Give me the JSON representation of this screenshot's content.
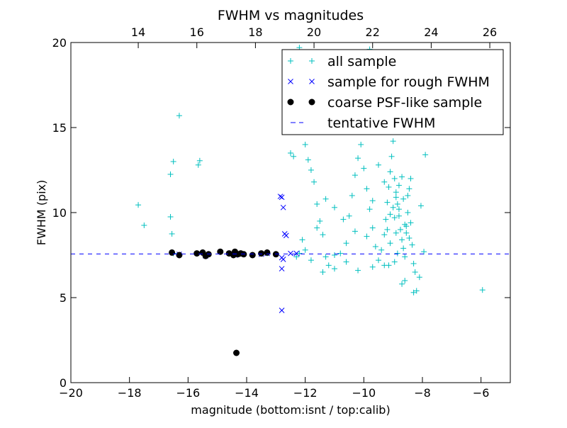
{
  "chart_data": {
    "type": "scatter",
    "title": "FWHM vs magnitudes",
    "xlabel": "magnitude (bottom:isnt / top:calib)",
    "ylabel": "FWHM (pix)",
    "xlim": [
      -20,
      -5
    ],
    "ylim": [
      0,
      20
    ],
    "x_ticks": [
      -20,
      -18,
      -16,
      -14,
      -12,
      -10,
      -8,
      -6
    ],
    "x_tick_labels": [
      "−20",
      "−18",
      "−16",
      "−14",
      "−12",
      "−10",
      "−8",
      "−6"
    ],
    "y_ticks": [
      0,
      5,
      10,
      15,
      20
    ],
    "y_tick_labels": [
      "0",
      "5",
      "10",
      "15",
      "20"
    ],
    "top_axis": {
      "offset": 31.7,
      "ticks": [
        14,
        16,
        18,
        20,
        22,
        24,
        26
      ],
      "tick_labels": [
        "14",
        "16",
        "18",
        "20",
        "22",
        "24",
        "26"
      ]
    },
    "grid": false,
    "legend_position": "top-right",
    "series": [
      {
        "name": "all sample",
        "marker": "plus",
        "color": "#00bfbf",
        "points": [
          [
            -17.7,
            10.45
          ],
          [
            -17.5,
            9.25
          ],
          [
            -16.6,
            12.25
          ],
          [
            -16.5,
            13.0
          ],
          [
            -16.6,
            9.75
          ],
          [
            -16.55,
            8.75
          ],
          [
            -16.5,
            7.6
          ],
          [
            -16.3,
            15.7
          ],
          [
            -15.6,
            13.05
          ],
          [
            -15.65,
            12.8
          ],
          [
            -13.5,
            7.6
          ],
          [
            -13.3,
            7.6
          ],
          [
            -12.2,
            7.6
          ],
          [
            -12.5,
            13.5
          ],
          [
            -12.0,
            14.0
          ],
          [
            -11.9,
            13.1
          ],
          [
            -11.8,
            12.5
          ],
          [
            -11.7,
            11.8
          ],
          [
            -11.6,
            10.5
          ],
          [
            -11.5,
            9.5
          ],
          [
            -11.4,
            8.7
          ],
          [
            -11.3,
            7.4
          ],
          [
            -11.2,
            6.9
          ],
          [
            -11.0,
            7.5
          ],
          [
            -10.8,
            7.6
          ],
          [
            -10.6,
            8.2
          ],
          [
            -10.5,
            9.8
          ],
          [
            -10.4,
            11.0
          ],
          [
            -10.3,
            12.2
          ],
          [
            -10.2,
            13.2
          ],
          [
            -10.1,
            14.0
          ],
          [
            -10.0,
            12.6
          ],
          [
            -9.9,
            11.4
          ],
          [
            -9.8,
            10.2
          ],
          [
            -9.7,
            9.1
          ],
          [
            -9.6,
            8.0
          ],
          [
            -9.5,
            7.2
          ],
          [
            -9.4,
            7.8
          ],
          [
            -9.3,
            8.7
          ],
          [
            -9.25,
            9.6
          ],
          [
            -9.2,
            10.6
          ],
          [
            -9.15,
            11.5
          ],
          [
            -9.1,
            12.4
          ],
          [
            -9.05,
            13.3
          ],
          [
            -9.0,
            14.2
          ],
          [
            -8.95,
            12.0
          ],
          [
            -8.9,
            11.2
          ],
          [
            -8.85,
            10.5
          ],
          [
            -8.8,
            9.8
          ],
          [
            -8.75,
            9.0
          ],
          [
            -8.7,
            8.4
          ],
          [
            -8.65,
            7.9
          ],
          [
            -8.6,
            7.4
          ],
          [
            -8.55,
            8.8
          ],
          [
            -8.5,
            10.0
          ],
          [
            -8.45,
            11.4
          ],
          [
            -8.4,
            9.4
          ],
          [
            -8.35,
            8.1
          ],
          [
            -8.3,
            7.0
          ],
          [
            -8.25,
            6.5
          ],
          [
            -8.2,
            5.4
          ],
          [
            -8.1,
            6.2
          ],
          [
            -7.95,
            7.7
          ],
          [
            -8.05,
            10.4
          ],
          [
            -7.9,
            13.4
          ],
          [
            -8.6,
            6.0
          ],
          [
            -8.7,
            5.8
          ],
          [
            -9.3,
            6.9
          ],
          [
            -9.7,
            6.8
          ],
          [
            -10.2,
            6.6
          ],
          [
            -10.6,
            7.1
          ],
          [
            -11.0,
            6.7
          ],
          [
            -11.4,
            6.5
          ],
          [
            -11.8,
            7.2
          ],
          [
            -12.1,
            8.4
          ],
          [
            -9.0,
            15.0
          ],
          [
            -9.2,
            16.5
          ],
          [
            -9.4,
            17.8
          ],
          [
            -9.6,
            19.0
          ],
          [
            -9.8,
            19.6
          ],
          [
            -10.1,
            17.3
          ],
          [
            -10.4,
            16.0
          ],
          [
            -10.7,
            15.0
          ],
          [
            -10.0,
            18.5
          ],
          [
            -9.5,
            12.8
          ],
          [
            -9.3,
            11.8
          ],
          [
            -8.9,
            10.9
          ],
          [
            -8.8,
            10.2
          ],
          [
            -8.95,
            9.7
          ],
          [
            -9.1,
            9.9
          ],
          [
            -8.65,
            10.8
          ],
          [
            -8.55,
            9.2
          ],
          [
            -8.45,
            8.5
          ],
          [
            -8.4,
            12.0
          ],
          [
            -9.7,
            10.7
          ],
          [
            -9.9,
            8.6
          ],
          [
            -10.3,
            8.9
          ],
          [
            -10.7,
            9.6
          ],
          [
            -11.0,
            10.3
          ],
          [
            -11.3,
            10.8
          ],
          [
            -11.6,
            9.1
          ],
          [
            -12.0,
            7.8
          ],
          [
            -12.3,
            7.4
          ],
          [
            -12.4,
            13.3
          ],
          [
            -12.7,
            16.4
          ],
          [
            -12.2,
            19.7
          ],
          [
            -5.95,
            5.45
          ],
          [
            -8.3,
            5.3
          ],
          [
            -8.95,
            7.1
          ],
          [
            -9.15,
            6.9
          ],
          [
            -8.85,
            7.6
          ],
          [
            -8.6,
            9.3
          ],
          [
            -8.5,
            11.0
          ],
          [
            -8.7,
            12.1
          ],
          [
            -8.8,
            11.6
          ],
          [
            -9.0,
            10.3
          ],
          [
            -9.2,
            9.0
          ],
          [
            -9.1,
            8.2
          ],
          [
            -8.9,
            8.8
          ]
        ]
      },
      {
        "name": "sample for rough FWHM",
        "marker": "x",
        "color": "#0000ff",
        "points": [
          [
            -12.85,
            10.95
          ],
          [
            -12.8,
            10.9
          ],
          [
            -12.75,
            10.3
          ],
          [
            -12.7,
            8.75
          ],
          [
            -12.65,
            8.65
          ],
          [
            -12.8,
            7.35
          ],
          [
            -12.75,
            7.25
          ],
          [
            -12.8,
            6.7
          ],
          [
            -12.8,
            4.25
          ],
          [
            -12.5,
            7.6
          ],
          [
            -12.3,
            7.6
          ],
          [
            -13.5,
            7.55
          ],
          [
            -13.3,
            7.6
          ],
          [
            -14.4,
            7.5
          ],
          [
            -15.4,
            7.45
          ],
          [
            -16.3,
            7.55
          ]
        ]
      },
      {
        "name": "coarse PSF-like sample",
        "marker": "o",
        "color": "#000000",
        "points": [
          [
            -16.55,
            7.65
          ],
          [
            -16.3,
            7.5
          ],
          [
            -15.7,
            7.6
          ],
          [
            -15.5,
            7.65
          ],
          [
            -15.4,
            7.45
          ],
          [
            -15.3,
            7.55
          ],
          [
            -14.9,
            7.7
          ],
          [
            -14.6,
            7.6
          ],
          [
            -14.45,
            7.5
          ],
          [
            -14.4,
            7.7
          ],
          [
            -14.3,
            7.55
          ],
          [
            -14.2,
            7.6
          ],
          [
            -14.1,
            7.55
          ],
          [
            -13.8,
            7.5
          ],
          [
            -13.5,
            7.6
          ],
          [
            -13.3,
            7.65
          ],
          [
            -13.0,
            7.55
          ],
          [
            -14.35,
            1.75
          ]
        ]
      },
      {
        "name": "tentative FWHM",
        "line": "dashed",
        "color": "#0000ff",
        "y_value": 7.57
      }
    ]
  }
}
